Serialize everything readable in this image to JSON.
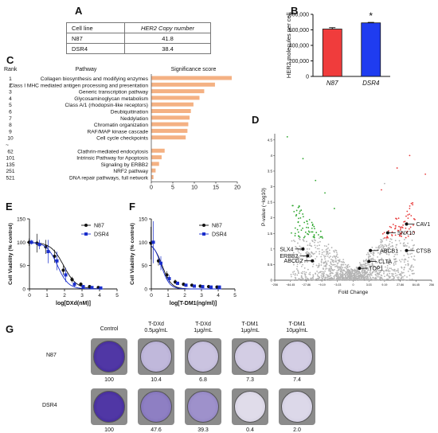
{
  "panels": {
    "A": "A",
    "B": "B",
    "C": "C",
    "D": "D",
    "E": "E",
    "F": "F",
    "G": "G"
  },
  "table_A": {
    "headers": [
      "Cell line",
      "HER2 Copy number"
    ],
    "rows": [
      [
        "N87",
        "41.8"
      ],
      [
        "DSR4",
        "38.4"
      ]
    ]
  },
  "chart_data": [
    {
      "id": "B",
      "type": "bar",
      "categories": [
        "N87",
        "DSR4"
      ],
      "values": [
        610000,
        690000
      ],
      "errors": [
        18000,
        6000
      ],
      "colors": [
        "#f03c3c",
        "#1f3cf0"
      ],
      "ylabel": "HER2 molecules per cell",
      "ylim": [
        0,
        800000
      ],
      "yticks": [
        "0",
        "200,000",
        "400,000",
        "600,000",
        "800,000"
      ],
      "yticks_values": [
        0,
        200000,
        400000,
        600000,
        800000
      ],
      "annotation": "*"
    },
    {
      "id": "C",
      "type": "bar",
      "orientation": "horizontal",
      "header_rank": "Rank",
      "header_pathway": "Pathway",
      "header_score": "Significance score",
      "ranks": [
        "1",
        "2",
        "3",
        "4",
        "5",
        "6",
        "7",
        "8",
        "9",
        "10",
        "~",
        "62",
        "101",
        "135",
        "251",
        "521"
      ],
      "pathways": [
        "Collagen biosynthesis and modifying enzymes",
        "Class I MHC mediated antigen processing and presentation",
        "Generic transcription pathway",
        "Glycosaminoglycan metabolism",
        "Class A/1 (rhodopsin-like receptors)",
        "Deubiquitination",
        "Neddylation",
        "Chromatin organization",
        "RAF/MAP kinase cascade",
        "Cell cycle checkpoints",
        "",
        "Clathrin-mediated endocytosis",
        "Intrinsic Pathway for Apoptosis",
        "Signaling by ERBB2",
        "NRF2 pathway",
        "DNA repair pathways, full network"
      ],
      "values": [
        18.7,
        14.8,
        12.3,
        11.2,
        9.8,
        9.2,
        8.9,
        8.6,
        8.4,
        8.0,
        null,
        3.1,
        2.4,
        1.8,
        1.0,
        0.5
      ],
      "color": "#f4b183",
      "xlim": [
        0,
        20
      ],
      "xticks": [
        "0",
        "5",
        "10",
        "15",
        "20"
      ],
      "xticks_values": [
        0,
        5,
        10,
        15,
        20
      ]
    },
    {
      "id": "D",
      "type": "scatter",
      "xlabel": "Fold Change",
      "ylabel": "P-value (−log10)",
      "xticks": [
        "−256",
        "−84.45",
        "−27.86",
        "−9.19",
        "−3.03",
        "0",
        "3.03",
        "9.19",
        "27.86",
        "84.45",
        "256"
      ],
      "yticks": [
        "0",
        "0.5",
        "1",
        "1.5",
        "2",
        "2.5",
        "3",
        "3.5",
        "4",
        "4.5"
      ],
      "ylim": [
        0,
        4.7
      ],
      "colors": {
        "up": "#e83a3a",
        "down": "#2ea62e",
        "ns": "#b4b4b4"
      },
      "labels": [
        {
          "text": "CAV1",
          "x": 1.7,
          "y": 1.8
        },
        {
          "text": "SNX10",
          "x": 1.1,
          "y": 1.52
        },
        {
          "text": "SLX4",
          "x": -1.6,
          "y": 1.0
        },
        {
          "text": "ABCB1",
          "x": 0.55,
          "y": 0.95
        },
        {
          "text": "CTSB",
          "x": 1.7,
          "y": 0.95
        },
        {
          "text": "ERBB2",
          "x": -1.45,
          "y": 0.78
        },
        {
          "text": "CLTA",
          "x": 0.5,
          "y": 0.6
        },
        {
          "text": "ABCG2",
          "x": -1.3,
          "y": 0.62
        },
        {
          "text": "TOP1",
          "x": 0.2,
          "y": 0.38
        }
      ]
    },
    {
      "id": "E",
      "type": "line",
      "xlabel": "log[DXd(nM)]",
      "ylabel": "Cell Viability (% control)",
      "xlim": [
        0,
        5
      ],
      "ylim": [
        0,
        150
      ],
      "xticks": [
        "0",
        "1",
        "2",
        "3",
        "4",
        "5"
      ],
      "yticks": [
        "0",
        "50",
        "100",
        "150"
      ],
      "series": [
        {
          "name": "N87",
          "color": "#111111",
          "marker": "circle",
          "x": [
            0.05,
            0.5,
            1.0,
            1.5,
            2.0,
            2.5,
            3.0,
            3.5,
            4.0
          ],
          "y": [
            100,
            98,
            90,
            70,
            40,
            20,
            10,
            5,
            3
          ],
          "err": [
            8,
            20,
            15,
            14,
            10,
            6,
            4,
            3,
            2
          ],
          "ic50": 1.95,
          "hill": 1.2
        },
        {
          "name": "DSR4",
          "color": "#1a2ecc",
          "marker": "square",
          "x": [
            0.05,
            0.5,
            1.0,
            1.5,
            2.0,
            2.5,
            3.0,
            3.5,
            4.0
          ],
          "y": [
            100,
            95,
            80,
            60,
            30,
            10,
            5,
            3,
            2
          ],
          "err": [
            5,
            10,
            25,
            20,
            15,
            5,
            3,
            2,
            2
          ],
          "ic50": 1.6,
          "hill": 1.4
        }
      ]
    },
    {
      "id": "F",
      "type": "line",
      "xlabel": "log[T-DM1(ng/ml)]",
      "ylabel": "Cell Viability (% control)",
      "xlim": [
        0,
        5
      ],
      "ylim": [
        0,
        150
      ],
      "xticks": [
        "0",
        "1",
        "2",
        "3",
        "4",
        "5"
      ],
      "yticks": [
        "0",
        "50",
        "100",
        "150"
      ],
      "series": [
        {
          "name": "N87",
          "color": "#111111",
          "marker": "circle",
          "x": [
            0.05,
            0.5,
            1.0,
            1.5,
            2.0,
            2.5,
            3.0,
            3.5,
            4.0
          ],
          "y": [
            98,
            60,
            30,
            15,
            10,
            8,
            6,
            5,
            4
          ],
          "err": [
            35,
            10,
            8,
            5,
            3,
            3,
            2,
            2,
            2
          ],
          "ic50": 0.65,
          "hill": 1.6
        },
        {
          "name": "DSR4",
          "color": "#1a2ecc",
          "marker": "square",
          "x": [
            0.05,
            0.5,
            1.0,
            1.5,
            2.0,
            2.5,
            3.0,
            3.5,
            4.0
          ],
          "y": [
            100,
            55,
            22,
            12,
            8,
            6,
            5,
            4,
            4
          ],
          "err": [
            45,
            15,
            8,
            4,
            3,
            2,
            2,
            2,
            2
          ],
          "ic50": 0.6,
          "hill": 1.8
        }
      ]
    }
  ],
  "panel_G": {
    "columns": [
      "Control",
      "T-DXd\n0.5μg/mL",
      "T-DXd\n1μg/mL",
      "T-DM1\n1μg/mL",
      "T-DM1\n10μg/mL"
    ],
    "rows": [
      {
        "label": "N87",
        "values": [
          "100",
          "10.4",
          "6.8",
          "7.3",
          "7.4"
        ],
        "intensity": [
          1.0,
          0.28,
          0.22,
          0.16,
          0.16
        ]
      },
      {
        "label": "DSR4",
        "values": [
          "100",
          "47.6",
          "39.3",
          "0.4",
          "2.0"
        ],
        "intensity": [
          1.0,
          0.6,
          0.5,
          0.08,
          0.1
        ]
      }
    ],
    "stain_color": "#5a3fae"
  }
}
